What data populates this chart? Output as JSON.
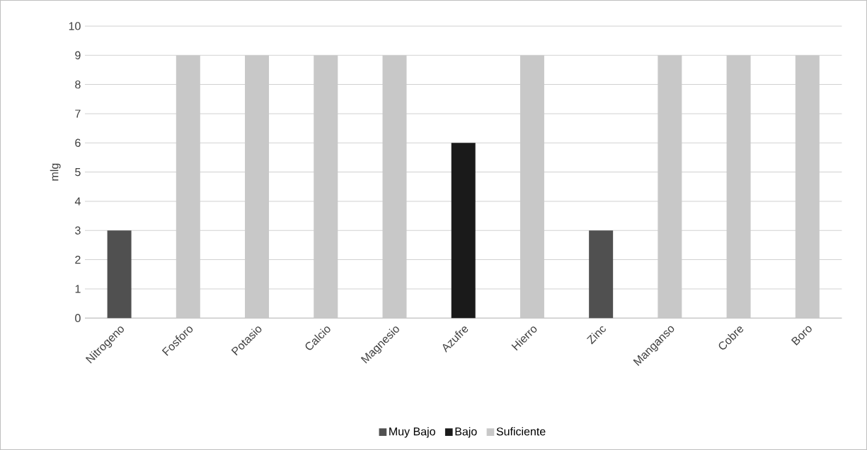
{
  "chart_data": {
    "type": "bar",
    "ylabel": "mlg",
    "categories": [
      "Nitrogeno",
      "Fosforo",
      "Potasio",
      "Calcio",
      "Magnesio",
      "Azufre",
      "Hierro",
      "Zinc",
      "Manganso",
      "Cobre",
      "Boro"
    ],
    "series": [
      {
        "name": "Muy Bajo",
        "color": "#505050",
        "values": [
          3,
          null,
          null,
          null,
          null,
          null,
          null,
          3,
          null,
          null,
          null
        ]
      },
      {
        "name": "Bajo",
        "color": "#1a1a1a",
        "values": [
          null,
          null,
          null,
          null,
          null,
          6,
          null,
          null,
          null,
          null,
          null
        ]
      },
      {
        "name": "Suficiente",
        "color": "#c8c8c8",
        "values": [
          null,
          9,
          9,
          9,
          9,
          null,
          9,
          null,
          9,
          9,
          9
        ]
      }
    ],
    "ylim": [
      0,
      10
    ],
    "yticks": [
      0,
      1,
      2,
      3,
      4,
      5,
      6,
      7,
      8,
      9,
      10
    ],
    "grid": "y",
    "legend": "bottom"
  }
}
